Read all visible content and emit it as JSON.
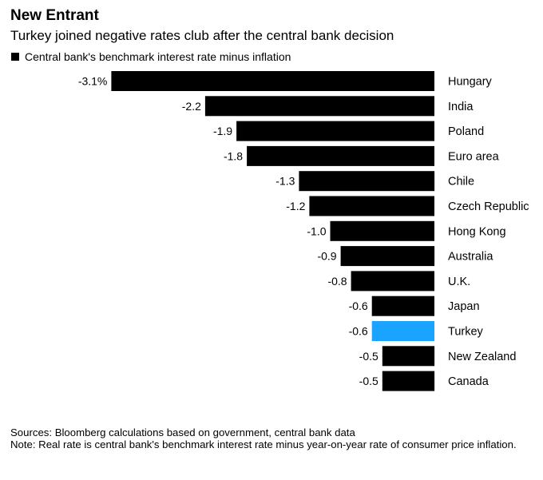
{
  "header": {
    "title": "New Entrant",
    "subtitle": "Turkey joined negative rates club after the central bank decision"
  },
  "legend": {
    "label": "Central bank's benchmark interest rate minus inflation",
    "color": "#000000"
  },
  "chart_data": {
    "type": "bar",
    "orientation": "horizontal",
    "title": "New Entrant",
    "subtitle": "Turkey joined negative rates club after the central bank decision",
    "xlabel": "",
    "ylabel": "",
    "xlim": [
      -3.1,
      0
    ],
    "grid": false,
    "legend_position": "top-left",
    "categories": [
      "Hungary",
      "India",
      "Poland",
      "Euro area",
      "Chile",
      "Czech Republic",
      "Hong Kong",
      "Australia",
      "U.K.",
      "Japan",
      "Turkey",
      "New Zealand",
      "Canada"
    ],
    "series": [
      {
        "name": "Central bank's benchmark interest rate minus inflation",
        "values": [
          -3.1,
          -2.2,
          -1.9,
          -1.8,
          -1.3,
          -1.2,
          -1.0,
          -0.9,
          -0.8,
          -0.6,
          -0.6,
          -0.5,
          -0.5
        ],
        "labels": [
          "-3.1%",
          "-2.2",
          "-1.9",
          "-1.8",
          "-1.3",
          "-1.2",
          "-1.0",
          "-0.9",
          "-0.8",
          "-0.6",
          "-0.6",
          "-0.5",
          "-0.5"
        ]
      }
    ],
    "colors": {
      "default": "#000000",
      "highlight": "#1aa3ff"
    },
    "highlight_category": "Turkey"
  },
  "footer": {
    "sources": "Sources: Bloomberg calculations based on government, central bank data",
    "note": "Note: Real rate is central bank's benchmark interest rate minus year-on-year rate of consumer price inflation."
  }
}
